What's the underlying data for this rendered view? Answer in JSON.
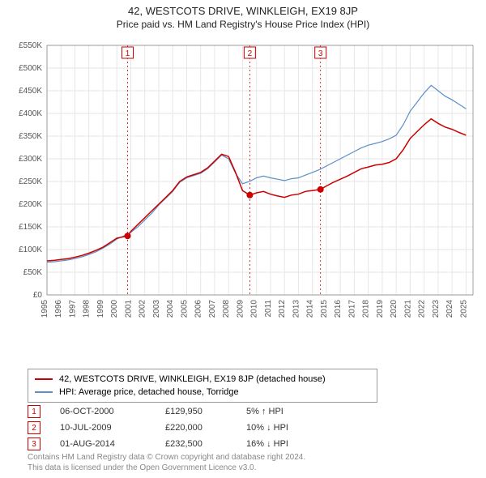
{
  "title": "42, WESTCOTS DRIVE, WINKLEIGH, EX19 8JP",
  "subtitle": "Price paid vs. HM Land Registry's House Price Index (HPI)",
  "chart": {
    "type": "line",
    "background_color": "#ffffff",
    "grid_color": "#e6e6e6",
    "axis_color": "#666666",
    "axis_fontsize": 10,
    "x_years": [
      1995,
      1996,
      1997,
      1998,
      1999,
      2000,
      2001,
      2002,
      2003,
      2004,
      2005,
      2006,
      2007,
      2008,
      2009,
      2010,
      2011,
      2012,
      2013,
      2014,
      2015,
      2016,
      2017,
      2018,
      2019,
      2020,
      2021,
      2022,
      2023,
      2024,
      2025
    ],
    "xlim": [
      1995,
      2025.5
    ],
    "ylim": [
      0,
      550000
    ],
    "ytick_step": 50000,
    "ytick_labels": [
      "£0",
      "£50K",
      "£100K",
      "£150K",
      "£200K",
      "£250K",
      "£300K",
      "£350K",
      "£400K",
      "£450K",
      "£500K",
      "£550K"
    ],
    "series": [
      {
        "name": "property",
        "label": "42, WESTCOTS DRIVE, WINKLEIGH, EX19 8JP (detached house)",
        "color": "#cc0000",
        "line_width": 1.5,
        "data": [
          [
            1995,
            75000
          ],
          [
            1995.5,
            76000
          ],
          [
            1996,
            78000
          ],
          [
            1996.5,
            80000
          ],
          [
            1997,
            83000
          ],
          [
            1997.5,
            87000
          ],
          [
            1998,
            92000
          ],
          [
            1998.5,
            98000
          ],
          [
            1999,
            105000
          ],
          [
            1999.5,
            115000
          ],
          [
            2000,
            125000
          ],
          [
            2000.77,
            129950
          ],
          [
            2001,
            140000
          ],
          [
            2001.5,
            155000
          ],
          [
            2002,
            170000
          ],
          [
            2002.5,
            185000
          ],
          [
            2003,
            200000
          ],
          [
            2003.5,
            215000
          ],
          [
            2004,
            230000
          ],
          [
            2004.5,
            250000
          ],
          [
            2005,
            260000
          ],
          [
            2005.5,
            265000
          ],
          [
            2006,
            270000
          ],
          [
            2006.5,
            280000
          ],
          [
            2007,
            295000
          ],
          [
            2007.5,
            310000
          ],
          [
            2008,
            305000
          ],
          [
            2008.5,
            270000
          ],
          [
            2009,
            230000
          ],
          [
            2009.52,
            220000
          ],
          [
            2010,
            225000
          ],
          [
            2010.5,
            228000
          ],
          [
            2011,
            222000
          ],
          [
            2011.5,
            218000
          ],
          [
            2012,
            215000
          ],
          [
            2012.5,
            220000
          ],
          [
            2013,
            222000
          ],
          [
            2013.5,
            228000
          ],
          [
            2014,
            230000
          ],
          [
            2014.58,
            232500
          ],
          [
            2015,
            240000
          ],
          [
            2015.5,
            248000
          ],
          [
            2016,
            255000
          ],
          [
            2016.5,
            262000
          ],
          [
            2017,
            270000
          ],
          [
            2017.5,
            278000
          ],
          [
            2018,
            282000
          ],
          [
            2018.5,
            286000
          ],
          [
            2019,
            288000
          ],
          [
            2019.5,
            292000
          ],
          [
            2020,
            300000
          ],
          [
            2020.5,
            320000
          ],
          [
            2021,
            345000
          ],
          [
            2021.5,
            360000
          ],
          [
            2022,
            375000
          ],
          [
            2022.5,
            388000
          ],
          [
            2023,
            378000
          ],
          [
            2023.5,
            370000
          ],
          [
            2024,
            365000
          ],
          [
            2024.5,
            358000
          ],
          [
            2025,
            352000
          ]
        ]
      },
      {
        "name": "hpi",
        "label": "HPI: Average price, detached house, Torridge",
        "color": "#5b8fc7",
        "line_width": 1.2,
        "data": [
          [
            1995,
            72000
          ],
          [
            1995.5,
            73000
          ],
          [
            1996,
            75000
          ],
          [
            1996.5,
            77000
          ],
          [
            1997,
            80000
          ],
          [
            1997.5,
            84000
          ],
          [
            1998,
            89000
          ],
          [
            1998.5,
            95000
          ],
          [
            1999,
            103000
          ],
          [
            1999.5,
            112000
          ],
          [
            2000,
            123000
          ],
          [
            2000.5,
            130000
          ],
          [
            2001,
            138000
          ],
          [
            2001.5,
            150000
          ],
          [
            2002,
            165000
          ],
          [
            2002.5,
            180000
          ],
          [
            2003,
            198000
          ],
          [
            2003.5,
            213000
          ],
          [
            2004,
            228000
          ],
          [
            2004.5,
            248000
          ],
          [
            2005,
            258000
          ],
          [
            2005.5,
            263000
          ],
          [
            2006,
            268000
          ],
          [
            2006.5,
            278000
          ],
          [
            2007,
            293000
          ],
          [
            2007.5,
            308000
          ],
          [
            2008,
            300000
          ],
          [
            2008.5,
            268000
          ],
          [
            2009,
            245000
          ],
          [
            2009.5,
            250000
          ],
          [
            2010,
            258000
          ],
          [
            2010.5,
            262000
          ],
          [
            2011,
            258000
          ],
          [
            2011.5,
            255000
          ],
          [
            2012,
            252000
          ],
          [
            2012.5,
            256000
          ],
          [
            2013,
            258000
          ],
          [
            2013.5,
            264000
          ],
          [
            2014,
            270000
          ],
          [
            2014.5,
            276000
          ],
          [
            2015,
            284000
          ],
          [
            2015.5,
            292000
          ],
          [
            2016,
            300000
          ],
          [
            2016.5,
            308000
          ],
          [
            2017,
            316000
          ],
          [
            2017.5,
            324000
          ],
          [
            2018,
            330000
          ],
          [
            2018.5,
            334000
          ],
          [
            2019,
            338000
          ],
          [
            2019.5,
            344000
          ],
          [
            2020,
            352000
          ],
          [
            2020.5,
            375000
          ],
          [
            2021,
            405000
          ],
          [
            2021.5,
            425000
          ],
          [
            2022,
            445000
          ],
          [
            2022.5,
            462000
          ],
          [
            2023,
            450000
          ],
          [
            2023.5,
            438000
          ],
          [
            2024,
            430000
          ],
          [
            2024.5,
            420000
          ],
          [
            2025,
            410000
          ]
        ]
      }
    ],
    "sale_markers": [
      {
        "num": 1,
        "x": 2000.77,
        "y": 129950,
        "color": "#cc0000",
        "refline_color": "#cc0000",
        "refline_dash": "2,3"
      },
      {
        "num": 2,
        "x": 2009.52,
        "y": 220000,
        "color": "#cc0000",
        "refline_color": "#cc0000",
        "refline_dash": "2,3"
      },
      {
        "num": 3,
        "x": 2014.58,
        "y": 232500,
        "color": "#cc0000",
        "refline_color": "#cc0000",
        "refline_dash": "2,3"
      }
    ]
  },
  "legend": {
    "border_color": "#999999",
    "fontsize": 11,
    "items": [
      {
        "color": "#cc0000",
        "label": "42, WESTCOTS DRIVE, WINKLEIGH, EX19 8JP (detached house)"
      },
      {
        "color": "#5b8fc7",
        "label": "HPI: Average price, detached house, Torridge"
      }
    ]
  },
  "sales": [
    {
      "num": "1",
      "date": "06-OCT-2000",
      "price": "£129,950",
      "hpi_delta": "5% ↑ HPI"
    },
    {
      "num": "2",
      "date": "10-JUL-2009",
      "price": "£220,000",
      "hpi_delta": "10% ↓ HPI"
    },
    {
      "num": "3",
      "date": "01-AUG-2014",
      "price": "£232,500",
      "hpi_delta": "16% ↓ HPI"
    }
  ],
  "footer": {
    "line1": "Contains HM Land Registry data © Crown copyright and database right 2024.",
    "line2": "This data is licensed under the Open Government Licence v3.0."
  }
}
